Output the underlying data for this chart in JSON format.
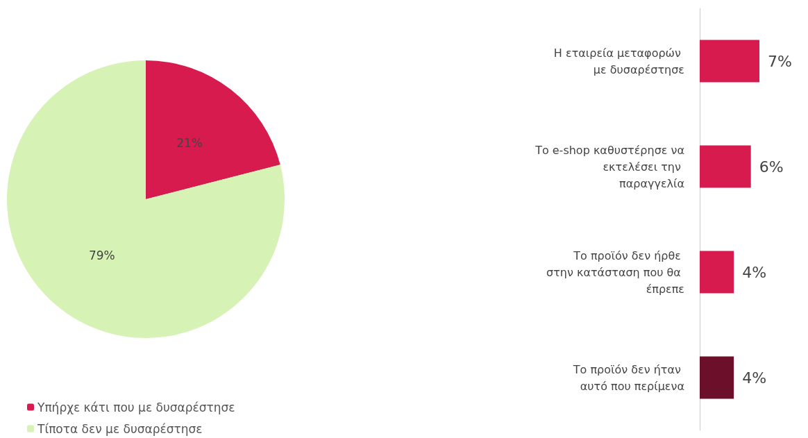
{
  "chart_data": [
    {
      "type": "pie",
      "categories": [
        "Υπήρχε κάτι που με δυσαρέστησε",
        "Τίποτα δεν με δυσαρέστησε"
      ],
      "values": [
        21,
        79
      ],
      "colors": [
        "#d81b4f",
        "#d6f2b4"
      ],
      "value_labels": [
        "21%",
        "79%"
      ],
      "legend": "bottom left"
    },
    {
      "type": "bar",
      "orientation": "horizontal",
      "categories": [
        "Η εταιρεία μεταφορών με δυσαρέστησε",
        "Το e-shop καθυστέρησε να εκτελέσει την παραγγελία",
        "Το προϊόν δεν ήρθε στην κατάσταση που θα έπρεπε",
        "Το προϊόν δεν ήταν αυτό που περίμενα"
      ],
      "values": [
        7,
        6,
        4,
        4
      ],
      "colors": [
        "#d81b4f",
        "#d81b4f",
        "#d81b4f",
        "#6b0f2b"
      ],
      "value_labels": [
        "7%",
        "6%",
        "4%",
        "4%"
      ]
    }
  ]
}
